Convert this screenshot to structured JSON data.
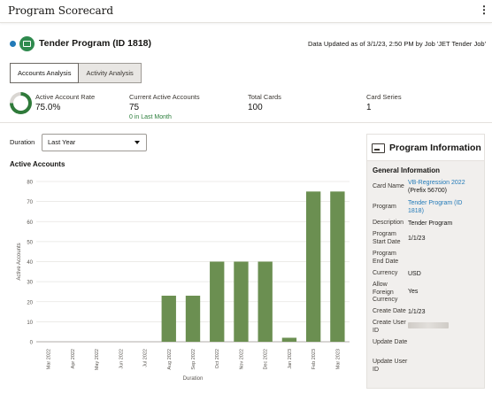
{
  "app": {
    "title": "Program Scorecard",
    "menu_glyph": "⋮"
  },
  "program": {
    "title": "Tender Program (ID 1818)",
    "updated": "Data Updated as of 3/1/23, 2:50 PM by Job 'JET Tender Job'"
  },
  "tabs": [
    {
      "label": "Accounts Analysis",
      "active": true
    },
    {
      "label": "Activity Analysis",
      "active": false
    }
  ],
  "metrics": {
    "active_account_rate": {
      "label": "Active Account Rate",
      "value": "75.0%",
      "fraction": 0.75
    },
    "current_active_accounts": {
      "label": "Current Active Accounts",
      "value": "75",
      "sub": "0 in Last Month"
    },
    "total_cards": {
      "label": "Total Cards",
      "value": "100"
    },
    "card_series": {
      "label": "Card Series",
      "value": "1"
    }
  },
  "duration": {
    "label": "Duration",
    "selected": "Last Year"
  },
  "chart_section_title": "Active Accounts",
  "chart_data": {
    "type": "bar",
    "categories": [
      "Mar 2022",
      "Apr 2022",
      "May 2022",
      "Jun 2022",
      "Jul 2022",
      "Aug 2022",
      "Sep 2022",
      "Oct 2022",
      "Nov 2022",
      "Dec 2022",
      "Jan 2023",
      "Feb 2023",
      "Mar 2023"
    ],
    "values": [
      0,
      0,
      0,
      0,
      0,
      23,
      23,
      40,
      40,
      40,
      2,
      75,
      75
    ],
    "xlabel": "Duration",
    "ylabel": "Active Accounts",
    "ylim": [
      0,
      80
    ],
    "yticks": [
      0,
      10,
      20,
      30,
      40,
      50,
      60,
      70,
      80
    ],
    "bar_color": "#6b8f51",
    "grid": true
  },
  "info": {
    "title": "Program Information",
    "section": "General Information",
    "rows": [
      {
        "key": "Card Name",
        "value": "VB-Regression 2022",
        "value2": "(Prefix 56700)"
      },
      {
        "key": "Program",
        "value": "Tender Program (ID 1818)"
      },
      {
        "key": "Description",
        "value": "Tender Program"
      },
      {
        "key": "Program Start Date",
        "value": "1/1/23"
      },
      {
        "key": "Program End Date",
        "value": ""
      },
      {
        "key": "Currency",
        "value": "USD"
      },
      {
        "key": "Allow Foreign Currency",
        "value": "Yes"
      },
      {
        "key": "Create Date",
        "value": "1/1/23"
      },
      {
        "key": "Create User ID",
        "value": ""
      },
      {
        "key": "Update Date",
        "value": ""
      },
      {
        "key": "Update User ID",
        "value": ""
      }
    ]
  },
  "colors": {
    "accent_green": "#2f7a3a",
    "link_blue": "#227ab8",
    "bar": "#6b8f51"
  }
}
